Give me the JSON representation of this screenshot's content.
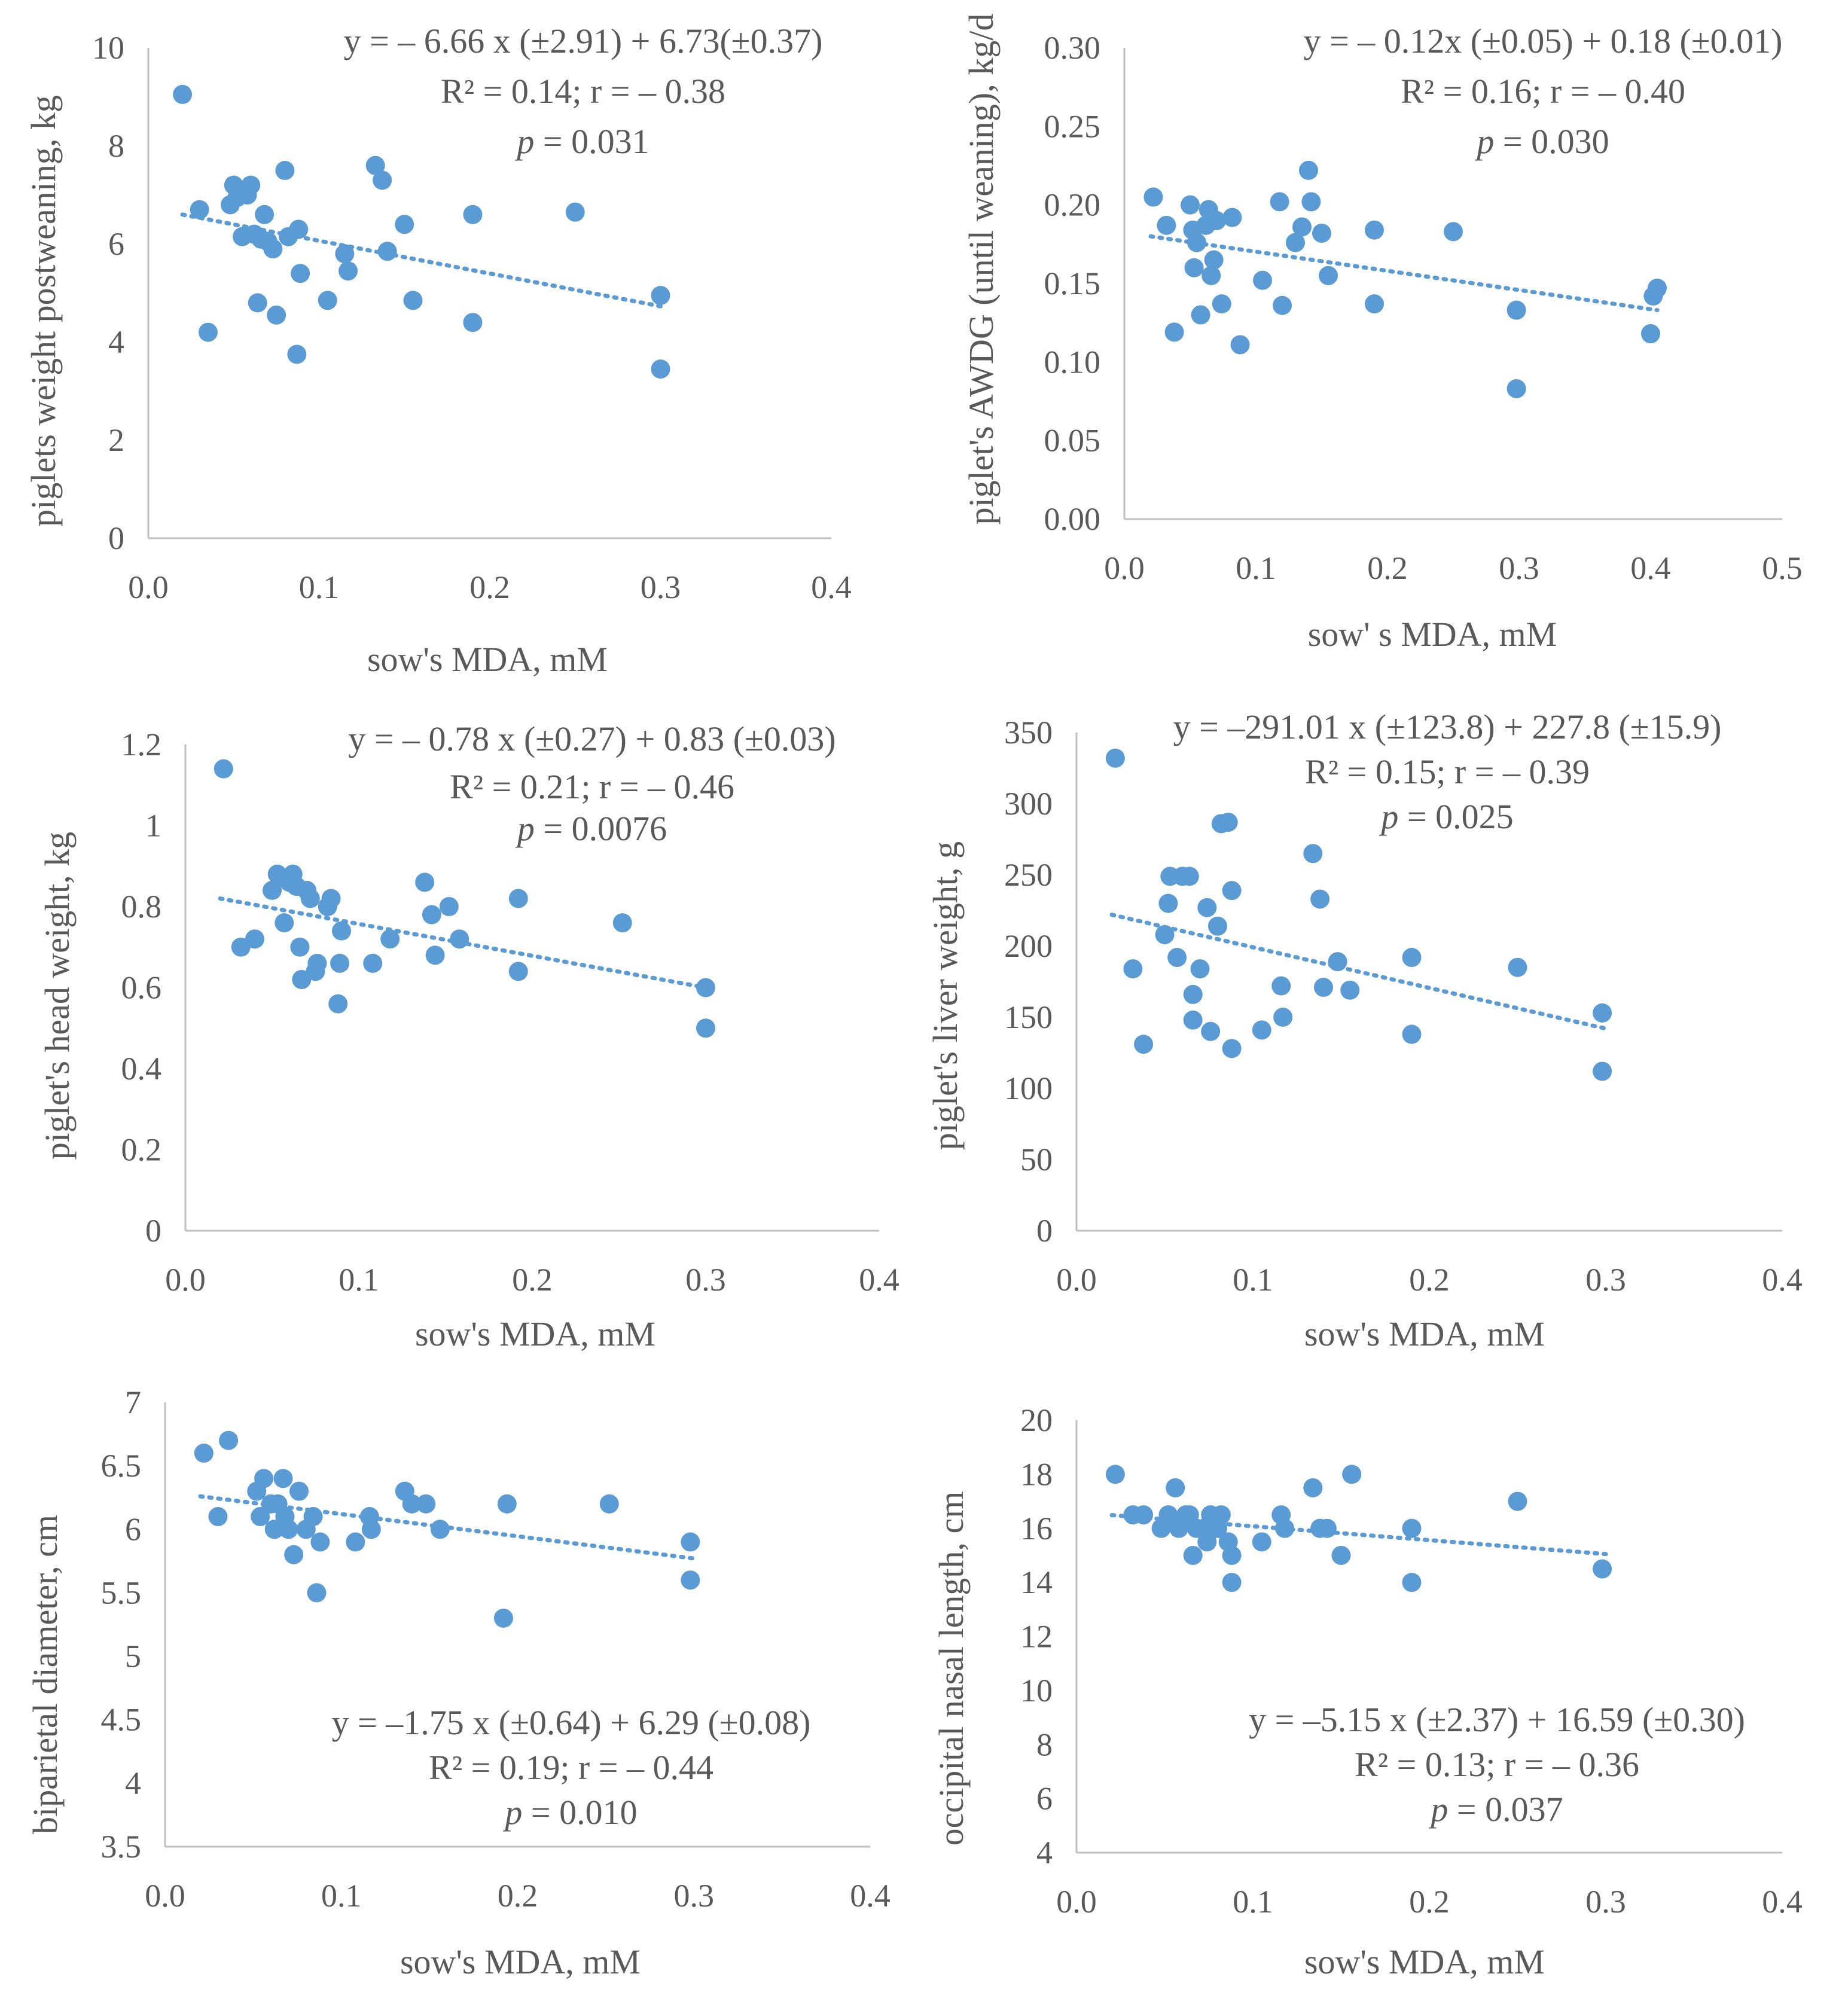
{
  "colors": {
    "point": "#5b9bd5",
    "trend": "#5b9bd5",
    "axis": "#bfbfbf",
    "text": "#595959"
  },
  "chart_data": [
    {
      "type": "scatter",
      "id": "weight",
      "title": "",
      "xlabel": "sow's MDA, mM",
      "ylabel": "piglets weight postweaning, kg",
      "xlim": [
        0,
        0.4
      ],
      "ylim": [
        0,
        10
      ],
      "xticks": [
        "0.0",
        "0.1",
        "0.2",
        "0.3",
        "0.4"
      ],
      "yticks": [
        "0",
        "2",
        "4",
        "6",
        "8",
        "10"
      ],
      "points": [
        [
          0.02,
          9.05
        ],
        [
          0.03,
          6.7
        ],
        [
          0.035,
          4.2
        ],
        [
          0.048,
          6.8
        ],
        [
          0.05,
          7.2
        ],
        [
          0.052,
          6.95
        ],
        [
          0.055,
          6.15
        ],
        [
          0.058,
          7.0
        ],
        [
          0.06,
          7.2
        ],
        [
          0.062,
          6.2
        ],
        [
          0.064,
          4.8
        ],
        [
          0.066,
          6.1
        ],
        [
          0.068,
          6.6
        ],
        [
          0.07,
          6.05
        ],
        [
          0.073,
          5.9
        ],
        [
          0.075,
          4.55
        ],
        [
          0.08,
          7.5
        ],
        [
          0.082,
          6.15
        ],
        [
          0.087,
          3.75
        ],
        [
          0.088,
          6.3
        ],
        [
          0.089,
          5.4
        ],
        [
          0.105,
          4.85
        ],
        [
          0.115,
          5.8
        ],
        [
          0.117,
          5.45
        ],
        [
          0.133,
          7.6
        ],
        [
          0.137,
          7.3
        ],
        [
          0.14,
          5.85
        ],
        [
          0.15,
          6.4
        ],
        [
          0.155,
          4.85
        ],
        [
          0.19,
          6.6
        ],
        [
          0.19,
          4.4
        ],
        [
          0.25,
          6.65
        ],
        [
          0.3,
          4.95
        ],
        [
          0.3,
          3.45
        ]
      ],
      "trendline": [
        [
          0.02,
          6.6
        ],
        [
          0.3,
          4.73
        ]
      ],
      "annotation": [
        "y = – 6.66 x (±2.91)  + 6.73(±0.37)",
        "R² = 0.14; r = – 0.38",
        "p",
        " = 0.031"
      ]
    },
    {
      "type": "scatter",
      "id": "awdg",
      "title": "",
      "xlabel": "sow' s MDA, mM",
      "ylabel": "piglet's AWDG (until weaning),  kg/d",
      "xlim": [
        0,
        0.5
      ],
      "ylim": [
        0,
        0.3
      ],
      "xticks": [
        "0.0",
        "0.1",
        "0.2",
        "0.3",
        "0.4",
        "0.5"
      ],
      "yticks": [
        "0.00",
        "0.05",
        "0.10",
        "0.15",
        "0.20",
        "0.25",
        "0.30"
      ],
      "points": [
        [
          0.022,
          0.205
        ],
        [
          0.032,
          0.187
        ],
        [
          0.038,
          0.119
        ],
        [
          0.05,
          0.2
        ],
        [
          0.052,
          0.184
        ],
        [
          0.053,
          0.16
        ],
        [
          0.055,
          0.176
        ],
        [
          0.058,
          0.13
        ],
        [
          0.062,
          0.187
        ],
        [
          0.064,
          0.197
        ],
        [
          0.066,
          0.155
        ],
        [
          0.068,
          0.165
        ],
        [
          0.07,
          0.19
        ],
        [
          0.074,
          0.137
        ],
        [
          0.082,
          0.192
        ],
        [
          0.088,
          0.111
        ],
        [
          0.105,
          0.152
        ],
        [
          0.118,
          0.202
        ],
        [
          0.12,
          0.136
        ],
        [
          0.13,
          0.176
        ],
        [
          0.135,
          0.186
        ],
        [
          0.14,
          0.222
        ],
        [
          0.142,
          0.202
        ],
        [
          0.15,
          0.182
        ],
        [
          0.155,
          0.155
        ],
        [
          0.19,
          0.184
        ],
        [
          0.19,
          0.137
        ],
        [
          0.25,
          0.183
        ],
        [
          0.298,
          0.133
        ],
        [
          0.298,
          0.083
        ],
        [
          0.4,
          0.118
        ],
        [
          0.402,
          0.142
        ],
        [
          0.405,
          0.147
        ]
      ],
      "trendline": [
        [
          0.02,
          0.18
        ],
        [
          0.405,
          0.133
        ]
      ],
      "annotation": [
        "y = – 0.12x (±0.05)  + 0.18 (±0.01)",
        "R² = 0.16; r = – 0.40",
        "p",
        " = 0.030"
      ]
    },
    {
      "type": "scatter",
      "id": "head",
      "title": "",
      "xlabel": "sow's MDA, mM",
      "ylabel": "piglet's head weight,  kg",
      "xlim": [
        0,
        0.4
      ],
      "ylim": [
        0,
        1.2
      ],
      "xticks": [
        "0.0",
        "0.1",
        "0.2",
        "0.3",
        "0.4"
      ],
      "yticks": [
        "0",
        "0.2",
        "0.4",
        "0.6",
        "0.8",
        "1",
        "1.2"
      ],
      "points": [
        [
          0.022,
          1.14
        ],
        [
          0.032,
          0.7
        ],
        [
          0.04,
          0.72
        ],
        [
          0.05,
          0.84
        ],
        [
          0.053,
          0.88
        ],
        [
          0.057,
          0.76
        ],
        [
          0.058,
          0.87
        ],
        [
          0.06,
          0.86
        ],
        [
          0.062,
          0.88
        ],
        [
          0.064,
          0.85
        ],
        [
          0.066,
          0.7
        ],
        [
          0.067,
          0.62
        ],
        [
          0.07,
          0.84
        ],
        [
          0.072,
          0.82
        ],
        [
          0.075,
          0.64
        ],
        [
          0.076,
          0.66
        ],
        [
          0.082,
          0.8
        ],
        [
          0.084,
          0.82
        ],
        [
          0.088,
          0.56
        ],
        [
          0.089,
          0.66
        ],
        [
          0.09,
          0.74
        ],
        [
          0.108,
          0.66
        ],
        [
          0.118,
          0.72
        ],
        [
          0.138,
          0.86
        ],
        [
          0.142,
          0.78
        ],
        [
          0.144,
          0.68
        ],
        [
          0.152,
          0.8
        ],
        [
          0.158,
          0.72
        ],
        [
          0.192,
          0.82
        ],
        [
          0.192,
          0.64
        ],
        [
          0.252,
          0.76
        ],
        [
          0.3,
          0.6
        ],
        [
          0.3,
          0.5
        ]
      ],
      "trendline": [
        [
          0.02,
          0.82
        ],
        [
          0.3,
          0.6
        ]
      ],
      "annotation": [
        "y = – 0.78 x (±0.27)  + 0.83 (±0.03)",
        "R² = 0.21; r = – 0.46",
        "p",
        " = 0.0076"
      ]
    },
    {
      "type": "scatter",
      "id": "liver",
      "title": "",
      "xlabel": "sow's MDA, mM",
      "ylabel": "piglet's liver  weight,  g",
      "xlim": [
        0,
        0.4
      ],
      "ylim": [
        0,
        350
      ],
      "xticks": [
        "0.0",
        "0.1",
        "0.2",
        "0.3",
        "0.4"
      ],
      "yticks": [
        "0",
        "50",
        "100",
        "150",
        "200",
        "250",
        "300",
        "350"
      ],
      "points": [
        [
          0.022,
          332
        ],
        [
          0.032,
          184
        ],
        [
          0.038,
          131
        ],
        [
          0.05,
          208
        ],
        [
          0.052,
          230
        ],
        [
          0.053,
          249
        ],
        [
          0.057,
          192
        ],
        [
          0.06,
          249
        ],
        [
          0.064,
          249
        ],
        [
          0.066,
          148
        ],
        [
          0.066,
          166
        ],
        [
          0.07,
          184
        ],
        [
          0.074,
          227
        ],
        [
          0.076,
          140
        ],
        [
          0.08,
          214
        ],
        [
          0.082,
          286
        ],
        [
          0.086,
          287
        ],
        [
          0.088,
          128
        ],
        [
          0.088,
          239
        ],
        [
          0.105,
          141
        ],
        [
          0.116,
          172
        ],
        [
          0.117,
          150
        ],
        [
          0.134,
          265
        ],
        [
          0.138,
          233
        ],
        [
          0.14,
          171
        ],
        [
          0.148,
          189
        ],
        [
          0.155,
          169
        ],
        [
          0.19,
          192
        ],
        [
          0.19,
          138
        ],
        [
          0.25,
          185
        ],
        [
          0.298,
          153
        ],
        [
          0.298,
          112
        ]
      ],
      "trendline": [
        [
          0.02,
          222
        ],
        [
          0.3,
          142
        ]
      ],
      "annotation": [
        "y = –291.01 x (±123.8)  + 227.8 (±15.9)",
        "R² = 0.15; r = – 0.39",
        "p",
        " = 0.025"
      ]
    },
    {
      "type": "scatter",
      "id": "bpd",
      "title": "",
      "xlabel": "sow's MDA, mM",
      "ylabel": "biparietal  diameter,  cm",
      "xlim": [
        0,
        0.4
      ],
      "ylim": [
        3.5,
        7
      ],
      "xticks": [
        "0.0",
        "0.1",
        "0.2",
        "0.3",
        "0.4"
      ],
      "yticks": [
        "3.5",
        "4",
        "4.5",
        "5",
        "5.5",
        "6",
        "6.5",
        "7"
      ],
      "points": [
        [
          0.022,
          6.6
        ],
        [
          0.03,
          6.1
        ],
        [
          0.036,
          6.7
        ],
        [
          0.052,
          6.3
        ],
        [
          0.054,
          6.1
        ],
        [
          0.056,
          6.4
        ],
        [
          0.06,
          6.2
        ],
        [
          0.062,
          6.0
        ],
        [
          0.064,
          6.2
        ],
        [
          0.067,
          6.4
        ],
        [
          0.068,
          6.1
        ],
        [
          0.07,
          6.0
        ],
        [
          0.073,
          5.8
        ],
        [
          0.076,
          6.3
        ],
        [
          0.08,
          6.0
        ],
        [
          0.084,
          6.1
        ],
        [
          0.086,
          5.5
        ],
        [
          0.088,
          5.9
        ],
        [
          0.108,
          5.9
        ],
        [
          0.116,
          6.1
        ],
        [
          0.117,
          6.0
        ],
        [
          0.136,
          6.3
        ],
        [
          0.14,
          6.2
        ],
        [
          0.148,
          6.2
        ],
        [
          0.156,
          6.0
        ],
        [
          0.192,
          5.3
        ],
        [
          0.194,
          6.2
        ],
        [
          0.252,
          6.2
        ],
        [
          0.298,
          5.9
        ],
        [
          0.298,
          5.6
        ]
      ],
      "trendline": [
        [
          0.02,
          6.26
        ],
        [
          0.3,
          5.77
        ]
      ],
      "annotation": [
        "y = –1.75 x (±0.64)   + 6.29 (±0.08)",
        "R² = 0.19; r = – 0.44",
        "p",
        " = 0.010"
      ]
    },
    {
      "type": "scatter",
      "id": "onl",
      "title": "",
      "xlabel": "sow's MDA, mM",
      "ylabel": "occipital nasal length,  cm",
      "xlim": [
        0,
        0.4
      ],
      "ylim": [
        4,
        20
      ],
      "xticks": [
        "0.0",
        "0.1",
        "0.2",
        "0.3",
        "0.4"
      ],
      "yticks": [
        "4",
        "6",
        "8",
        "10",
        "12",
        "14",
        "16",
        "18",
        "20"
      ],
      "points": [
        [
          0.022,
          18.0
        ],
        [
          0.032,
          16.5
        ],
        [
          0.038,
          16.5
        ],
        [
          0.048,
          16.0
        ],
        [
          0.052,
          16.5
        ],
        [
          0.056,
          17.5
        ],
        [
          0.058,
          16.0
        ],
        [
          0.062,
          16.5
        ],
        [
          0.064,
          16.5
        ],
        [
          0.066,
          15.0
        ],
        [
          0.068,
          16.0
        ],
        [
          0.072,
          16.0
        ],
        [
          0.074,
          15.5
        ],
        [
          0.076,
          16.5
        ],
        [
          0.08,
          16.0
        ],
        [
          0.082,
          16.5
        ],
        [
          0.086,
          15.5
        ],
        [
          0.088,
          15.0
        ],
        [
          0.088,
          14.0
        ],
        [
          0.105,
          15.5
        ],
        [
          0.116,
          16.5
        ],
        [
          0.118,
          16.0
        ],
        [
          0.134,
          17.5
        ],
        [
          0.138,
          16.0
        ],
        [
          0.142,
          16.0
        ],
        [
          0.15,
          15.0
        ],
        [
          0.156,
          18.0
        ],
        [
          0.19,
          16.0
        ],
        [
          0.19,
          14.0
        ],
        [
          0.25,
          17.0
        ],
        [
          0.298,
          14.5
        ]
      ],
      "trendline": [
        [
          0.02,
          16.49
        ],
        [
          0.3,
          15.05
        ]
      ],
      "annotation": [
        "y = –5.15 x (±2.37) + 16.59 (±0.30)",
        "R² = 0.13; r = – 0.36",
        "p",
        " = 0.037"
      ]
    }
  ]
}
